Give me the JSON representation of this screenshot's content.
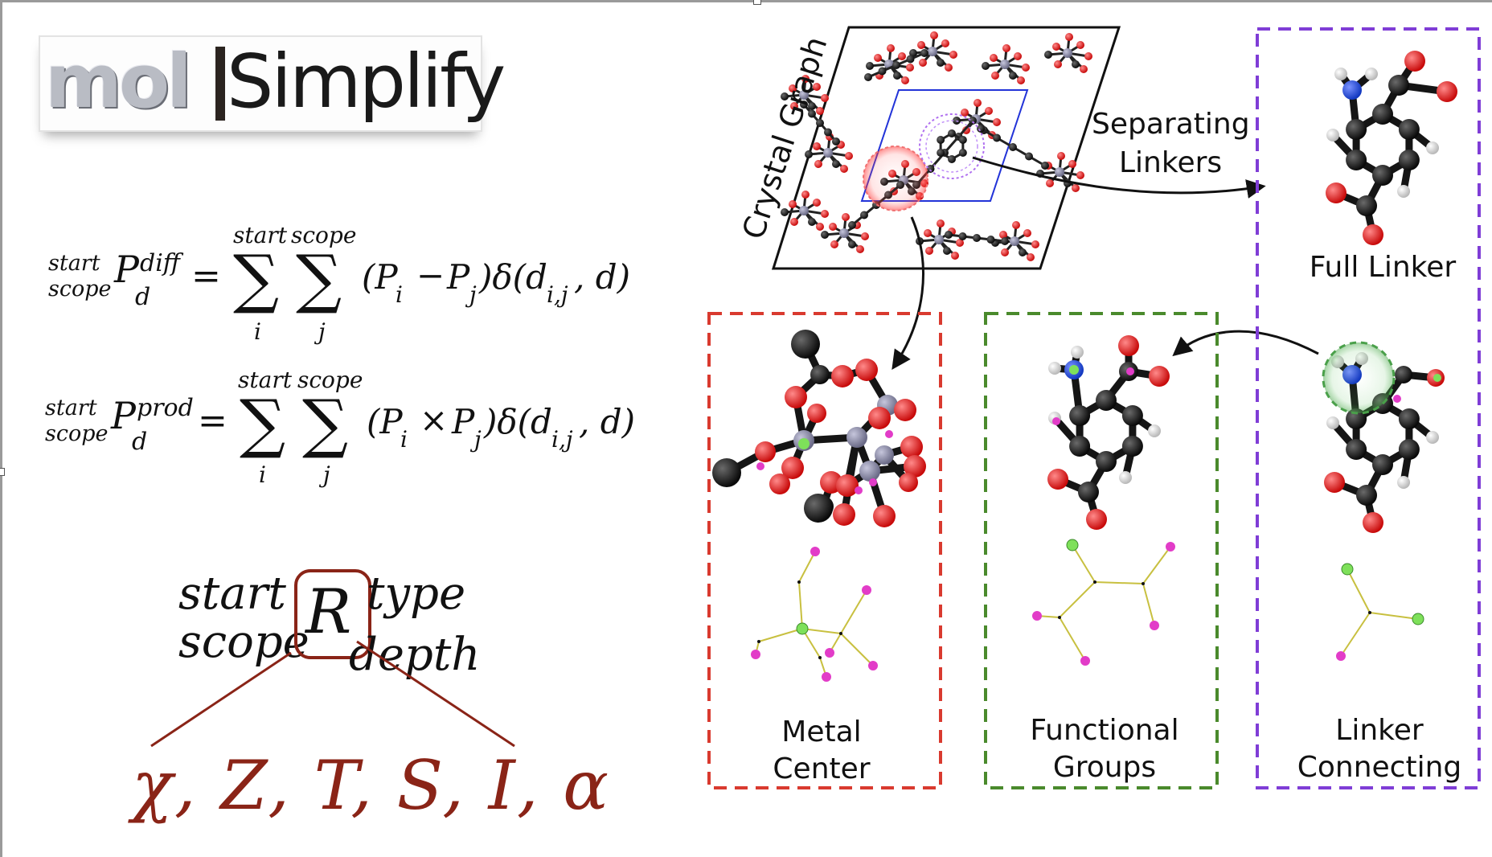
{
  "logo": {
    "mol": "mol",
    "rest": "Simplify"
  },
  "eq1": {
    "lhs_sup1": "start",
    "lhs_sub1": "scope",
    "lhs_P": "P",
    "lhs_sup2": "diff",
    "lhs_sub2": "d",
    "equals": "=",
    "sum_sym": "∑",
    "sum1_top": "start",
    "sum1_bottom": "i",
    "sum2_top": "scope",
    "sum2_bottom": "j",
    "rhs": "(P",
    "rhs_i": "i",
    "op": "−",
    "rhs_Pj": "P",
    "rhs_j": "j",
    "rhs_delta": ")δ(d",
    "rhs_ij": "i,j",
    "rhs_end": ", d)"
  },
  "eq2": {
    "lhs_sup1": "start",
    "lhs_sub1": "scope",
    "lhs_P": "P",
    "lhs_sup2": "prod",
    "lhs_sub2": "d",
    "equals": "=",
    "sum_sym": "∑",
    "sum1_top": "start",
    "sum1_bottom": "i",
    "sum2_top": "scope",
    "sum2_bottom": "j",
    "rhs": "(P",
    "rhs_i": "i",
    "op": "×",
    "rhs_Pj": "P",
    "rhs_j": "j",
    "rhs_delta": ")δ(d",
    "rhs_ij": "i,j",
    "rhs_end": ", d)"
  },
  "rac": {
    "start": "start",
    "scope": "scope",
    "R": "R",
    "type": "type",
    "depth": "depth",
    "properties": "χ, Z, T, S, I, α",
    "bracket_color": "#8a2417"
  },
  "diagram": {
    "crystal_graph": "Crystal Graph",
    "separating_linkers": [
      "Separating",
      "Linkers"
    ],
    "full_linker": "Full Linker",
    "metal_center": [
      "Metal",
      "Center"
    ],
    "functional_groups": [
      "Functional",
      "Groups"
    ],
    "linker_connecting": [
      "Linker",
      "Connecting"
    ]
  },
  "colors": {
    "metal_box": "#d93a2f",
    "functional_box": "#4a8a2c",
    "linker_box": "#7f3dd6",
    "oxygen": "#d91010",
    "carbon": "#111111",
    "nitrogen": "#1840c8",
    "hydrogen": "#e8e8e8",
    "metal": "#8a8aa6",
    "graph_green": "#7ee05a",
    "graph_magenta": "#e23cc8",
    "graph_edge": "#c8c040",
    "cell_blue": "#2233d8"
  }
}
